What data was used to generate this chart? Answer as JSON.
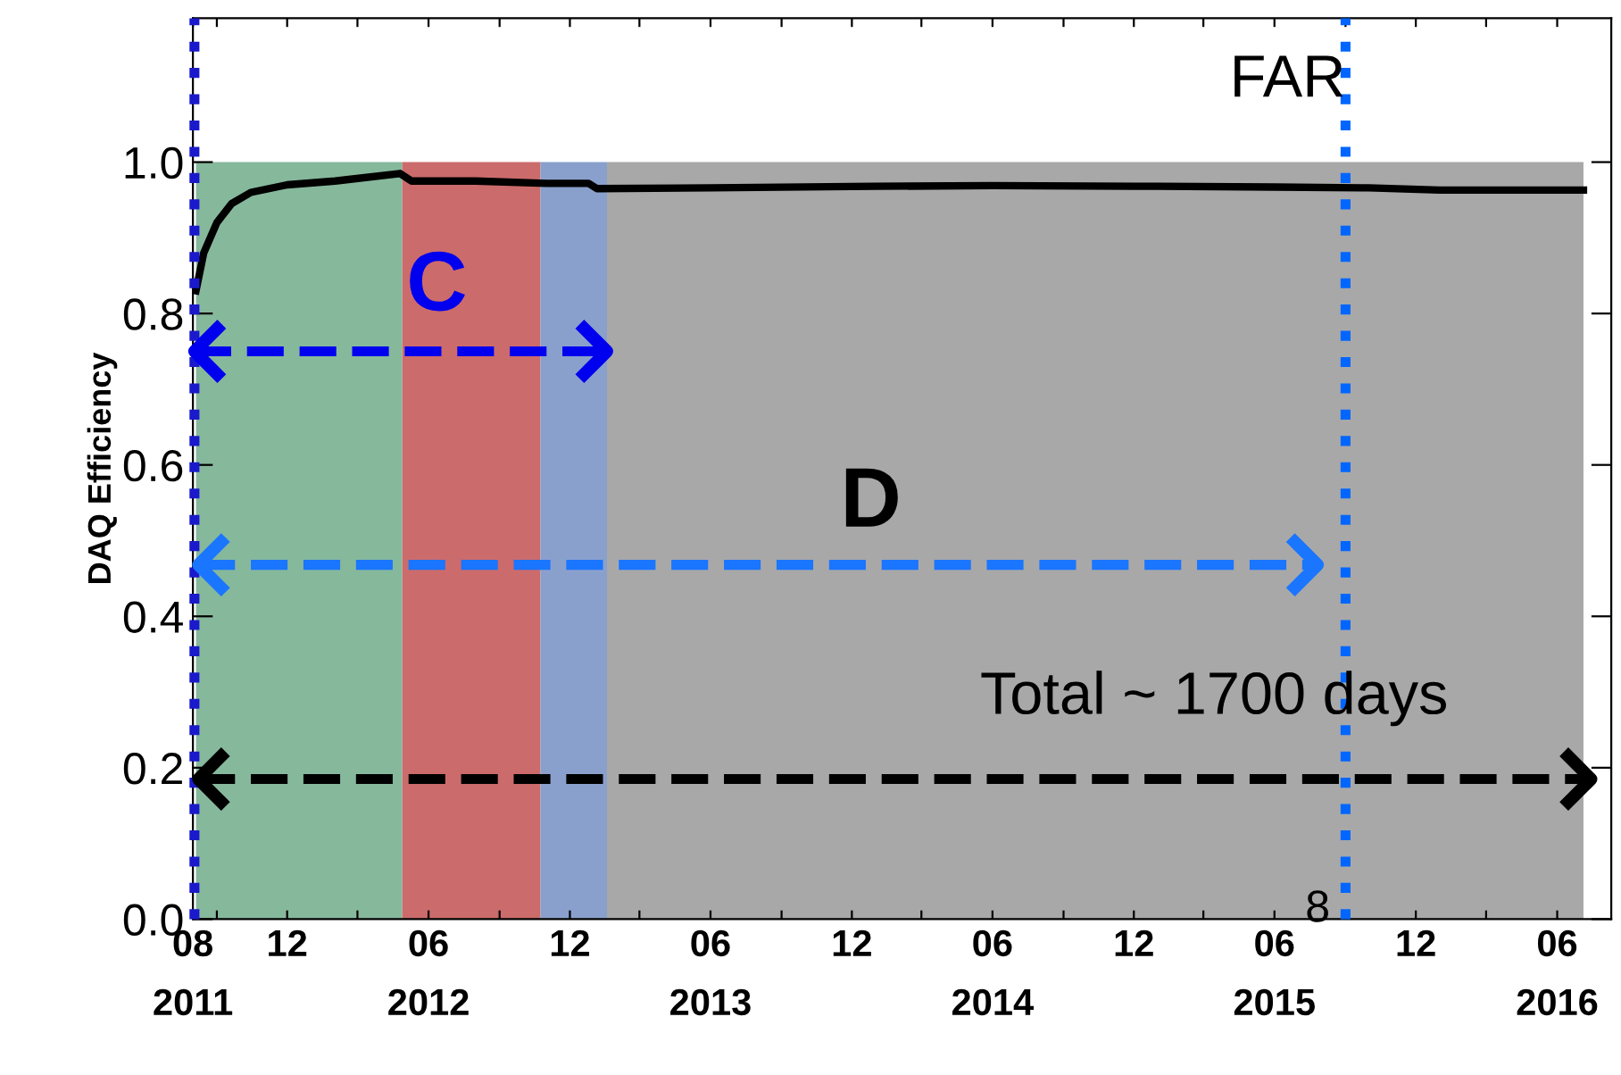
{
  "chart_data": {
    "type": "line",
    "ylabel": "DAQ Efficiency",
    "xlim": [
      "2011-08-01",
      "2016-08-10"
    ],
    "ylim": [
      0,
      1.19
    ],
    "xticks": [
      {
        "value": "2011-08-01",
        "label": "08\n2011"
      },
      {
        "value": "2011-09-01",
        "label": null
      },
      {
        "value": "2011-12-01",
        "label": "12"
      },
      {
        "value": "2012-03-01",
        "label": null
      },
      {
        "value": "2012-06-01",
        "label": "06\n2012"
      },
      {
        "value": "2012-09-01",
        "label": null
      },
      {
        "value": "2012-12-01",
        "label": "12"
      },
      {
        "value": "2013-03-01",
        "label": null
      },
      {
        "value": "2013-06-01",
        "label": "06\n2013"
      },
      {
        "value": "2013-09-01",
        "label": null
      },
      {
        "value": "2013-12-01",
        "label": "12"
      },
      {
        "value": "2014-03-01",
        "label": null
      },
      {
        "value": "2014-06-01",
        "label": "06\n2014"
      },
      {
        "value": "2014-09-01",
        "label": null
      },
      {
        "value": "2014-12-01",
        "label": "12"
      },
      {
        "value": "2015-03-01",
        "label": null
      },
      {
        "value": "2015-06-01",
        "label": "06\n2015"
      },
      {
        "value": "2015-09-01",
        "label": null
      },
      {
        "value": "2015-12-01",
        "label": "12"
      },
      {
        "value": "2016-03-01",
        "label": null
      },
      {
        "value": "2016-06-01",
        "label": "06\n2016"
      }
    ],
    "yticks": [
      {
        "value": 0,
        "label": "0.0"
      },
      {
        "value": 0.2,
        "label": "0.2"
      },
      {
        "value": 0.4,
        "label": "0.4"
      },
      {
        "value": 0.6,
        "label": "0.6"
      },
      {
        "value": 0.8,
        "label": "0.8"
      },
      {
        "value": 1.0,
        "label": "1.0"
      }
    ],
    "series": [
      {
        "type": "area",
        "color": "#86b89c",
        "x": [
          "2011-08-05",
          "2012-04-28"
        ],
        "values": [
          1.0,
          1.0
        ]
      },
      {
        "type": "area",
        "color": "#cc6b6b",
        "x": [
          "2012-04-28",
          "2012-10-24"
        ],
        "values": [
          1.0,
          1.0
        ]
      },
      {
        "type": "area",
        "color": "#8aa0cc",
        "x": [
          "2012-10-24",
          "2013-01-18"
        ],
        "values": [
          1.0,
          1.0
        ]
      },
      {
        "type": "area",
        "color": "#a8a8a8",
        "x": [
          "2013-01-18",
          "2016-07-05"
        ],
        "values": [
          1.0,
          1.0
        ]
      },
      {
        "type": "line",
        "color": "#000000",
        "x": [
          "2011-08-05",
          "2011-08-15",
          "2011-09-01",
          "2011-09-20",
          "2011-10-15",
          "2011-12-01",
          "2012-02-01",
          "2012-04-25",
          "2012-05-10",
          "2012-08-01",
          "2012-11-01",
          "2012-12-25",
          "2013-01-05",
          "2013-06-01",
          "2014-01-01",
          "2014-06-01",
          "2015-01-01",
          "2015-06-01",
          "2015-10-01",
          "2016-01-01",
          "2016-07-05"
        ],
        "values": [
          0.83,
          0.88,
          0.92,
          0.945,
          0.96,
          0.97,
          0.975,
          0.985,
          0.975,
          0.975,
          0.972,
          0.972,
          0.965,
          0.966,
          0.968,
          0.969,
          0.968,
          0.967,
          0.966,
          0.963,
          0.963
        ]
      },
      {
        "type": "line",
        "color": "#0000ee",
        "line_style": "dashed",
        "x": [
          "2011-08-03",
          "2013-01-18"
        ],
        "values": [
          0.75,
          0.75
        ]
      },
      {
        "type": "line",
        "color": "#1a75ff",
        "line_style": "dashed",
        "x": [
          "2011-08-08",
          "2015-07-27"
        ],
        "values": [
          0.468,
          0.468
        ]
      },
      {
        "type": "line",
        "color": "#000000",
        "line_style": "dashed",
        "x": [
          "2011-08-08",
          "2016-07-15"
        ],
        "values": [
          0.185,
          0.185
        ]
      }
    ],
    "ref_lines": [
      {
        "axis": "x",
        "value": "2011-08-03",
        "label": null,
        "color": "#1a1acc",
        "line_style": "dotted"
      },
      {
        "axis": "x",
        "value": "2015-09-01",
        "label": "FAR",
        "color": "#0066ff",
        "line_style": "dotted"
      }
    ],
    "annotations": [
      "C",
      "D",
      "Total ~ 1700 days",
      "8"
    ],
    "grid": false,
    "legend": false
  }
}
